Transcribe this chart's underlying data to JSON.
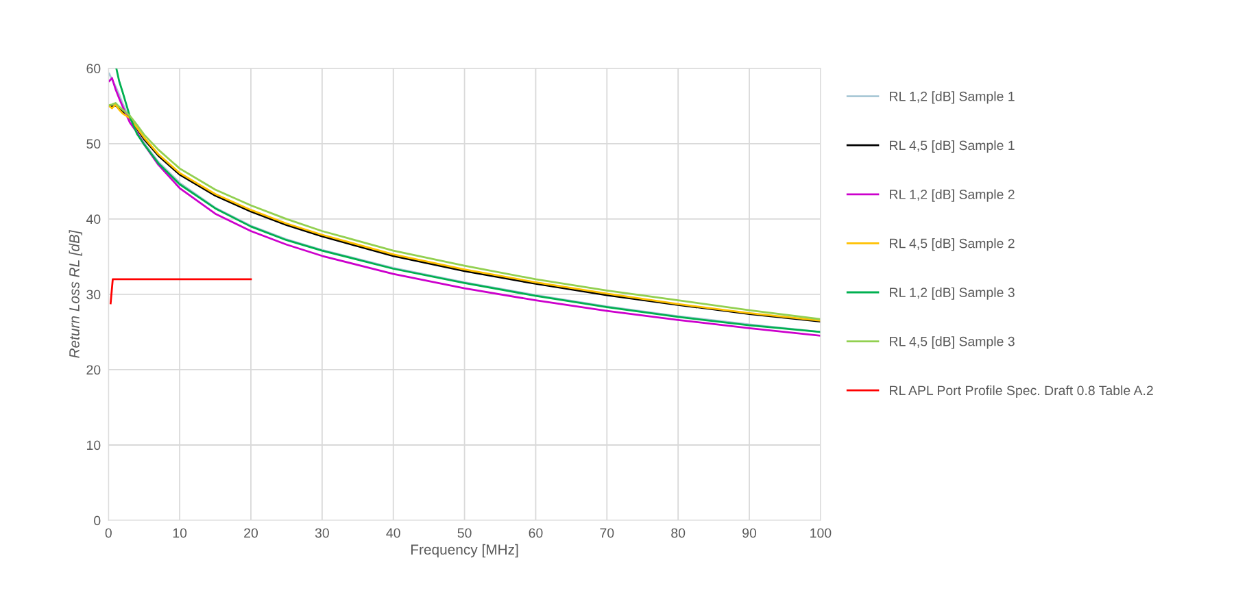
{
  "chart_data": {
    "type": "line",
    "xlabel": "Frequency [MHz]",
    "ylabel": "Return Loss RL [dB]",
    "x": [
      0.1,
      0.5,
      1,
      1.5,
      2,
      3,
      4,
      5,
      7,
      10,
      15,
      20,
      25,
      30,
      40,
      50,
      60,
      70,
      80,
      90,
      100
    ],
    "series": [
      {
        "name": "RL 1,2 [dB] Sample 1",
        "color": "#a9c8d6",
        "values": [
          59.3,
          58.5,
          57.6,
          56.5,
          55.3,
          53.3,
          51.6,
          50.1,
          47.6,
          44.8,
          41.5,
          39.1,
          37.3,
          35.9,
          33.5,
          31.6,
          29.9,
          28.4,
          27.1,
          26.0,
          25.0
        ]
      },
      {
        "name": "RL 4,5 [dB] Sample 1",
        "color": "#000000",
        "values": [
          55.0,
          54.9,
          55.1,
          54.6,
          54.2,
          53.4,
          52.0,
          50.6,
          48.4,
          45.9,
          43.1,
          41.0,
          39.2,
          37.7,
          35.1,
          33.1,
          31.4,
          29.9,
          28.6,
          27.4,
          26.4
        ]
      },
      {
        "name": "RL 1,2 [dB] Sample 2",
        "color": "#cc00cc",
        "values": [
          58.3,
          58.7,
          57.2,
          56.0,
          54.9,
          52.8,
          51.5,
          49.9,
          47.2,
          44.1,
          40.7,
          38.4,
          36.6,
          35.1,
          32.7,
          30.8,
          29.2,
          27.8,
          26.6,
          25.5,
          24.5
        ]
      },
      {
        "name": "RL 4,5 [dB] Sample 2",
        "color": "#ffc000",
        "values": [
          55.0,
          54.7,
          55.2,
          54.5,
          54.0,
          53.4,
          52.1,
          50.8,
          48.6,
          46.1,
          43.3,
          41.2,
          39.4,
          37.9,
          35.3,
          33.3,
          31.6,
          30.1,
          28.7,
          27.5,
          26.5
        ]
      },
      {
        "name": "RL 1,2 [dB] Sample 3",
        "color": "#00b050",
        "x": [
          1.1,
          1.5,
          2,
          3,
          4,
          5,
          7,
          10,
          15,
          20,
          25,
          30,
          40,
          50,
          60,
          70,
          80,
          90,
          100
        ],
        "values": [
          60.0,
          58.3,
          56.8,
          53.6,
          51.3,
          49.9,
          47.4,
          44.6,
          41.4,
          39.0,
          37.2,
          35.8,
          33.4,
          31.5,
          29.8,
          28.3,
          27.0,
          25.9,
          25.0
        ]
      },
      {
        "name": "RL 4,5 [dB] Sample 3",
        "color": "#92d050",
        "values": [
          55.1,
          55.2,
          55.4,
          54.9,
          54.5,
          53.7,
          52.5,
          51.2,
          49.2,
          46.7,
          43.9,
          41.8,
          40.0,
          38.4,
          35.8,
          33.8,
          32.0,
          30.5,
          29.2,
          27.9,
          26.7
        ]
      },
      {
        "name": "RL APL Port Profile Spec. Draft 0.8 Table A.2",
        "color": "#ff0000",
        "x": [
          0.3,
          0.6,
          20
        ],
        "values": [
          28.8,
          32,
          32
        ]
      }
    ],
    "xlim": [
      0,
      100
    ],
    "xticks": [
      0,
      10,
      20,
      30,
      40,
      50,
      60,
      70,
      80,
      90,
      100
    ],
    "ylim": [
      0,
      60
    ],
    "yticks": [
      0,
      10,
      20,
      30,
      40,
      50,
      60
    ],
    "grid": true,
    "legend": "right",
    "marker": "none",
    "line_style": "solid"
  }
}
